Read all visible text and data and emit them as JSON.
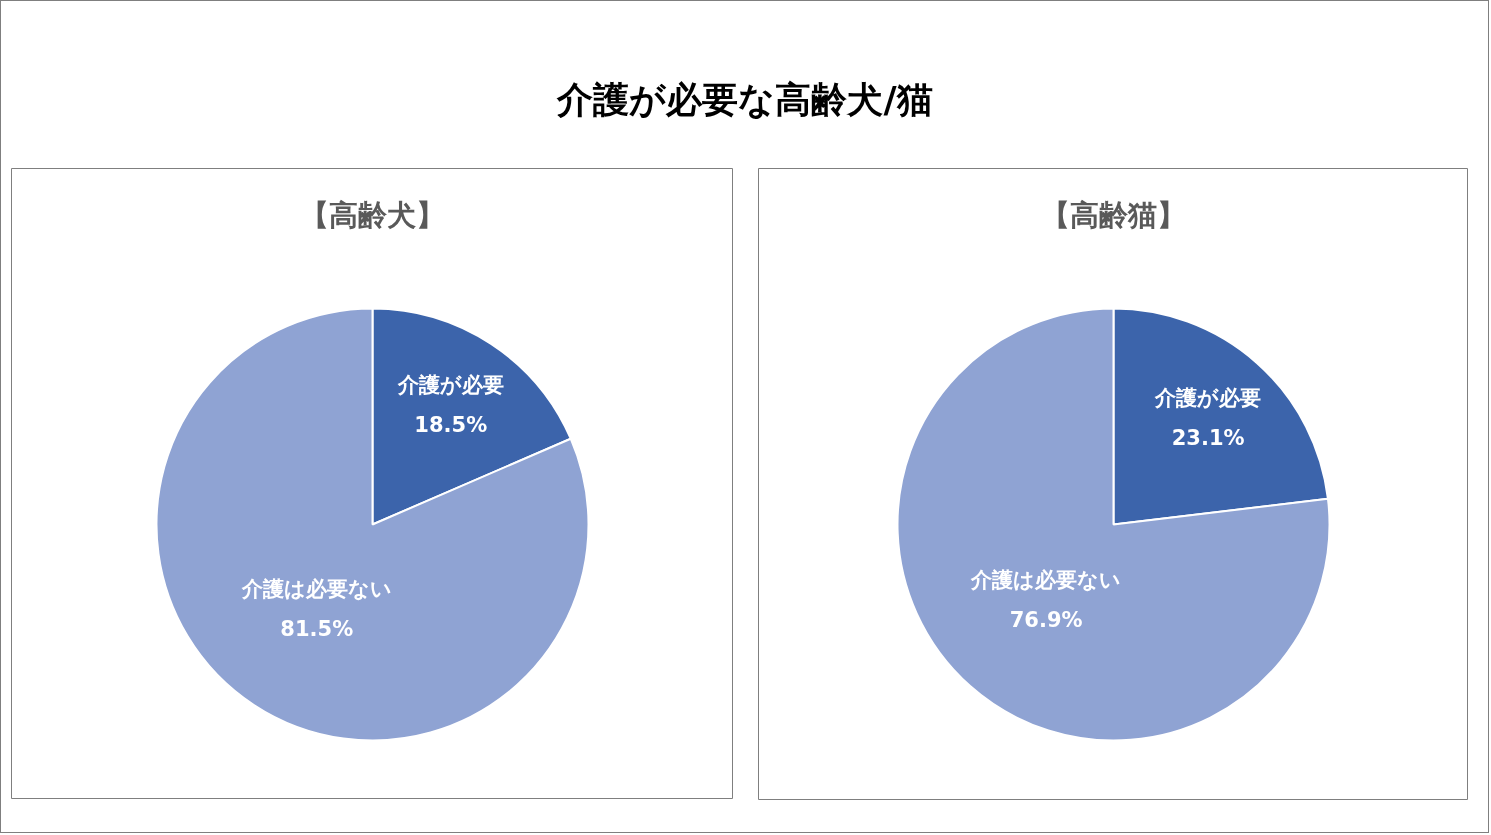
{
  "chart_data": [
    {
      "type": "other",
      "title": "介護が必要な高齢犬/猫"
    },
    {
      "type": "pie",
      "title": "【高齢犬】",
      "categories": [
        "介護が必要",
        "介護は必要ない"
      ],
      "values": [
        18.5,
        81.5
      ],
      "colors": [
        "#3c64ab",
        "#8fa3d3"
      ],
      "value_labels": [
        "18.5%",
        "81.5%"
      ]
    },
    {
      "type": "pie",
      "title": "【高齢猫】",
      "categories": [
        "介護が必要",
        "介護は必要ない"
      ],
      "values": [
        23.1,
        76.9
      ],
      "colors": [
        "#3c64ab",
        "#8fa3d3"
      ],
      "value_labels": [
        "23.1%",
        "76.9%"
      ]
    }
  ]
}
